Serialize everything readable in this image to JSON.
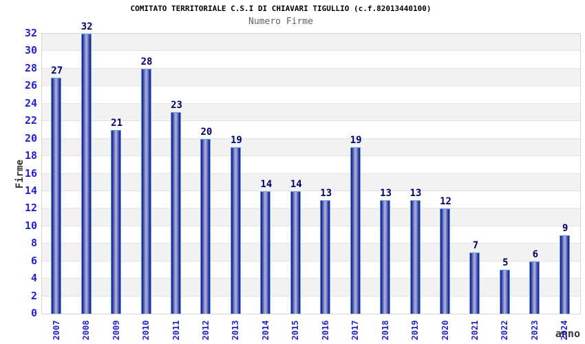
{
  "header": {
    "title": "COMITATO TERRITORIALE C.S.I DI CHIAVARI TIGULLIO (c.f.82013440100)",
    "subtitle": "Numero Firme"
  },
  "chart_data": {
    "type": "bar",
    "title": "COMITATO TERRITORIALE C.S.I DI CHIAVARI TIGULLIO (c.f.82013440100)",
    "subtitle": "Numero Firme",
    "categories": [
      "2007",
      "2008",
      "2009",
      "2010",
      "2011",
      "2012",
      "2013",
      "2014",
      "2015",
      "2016",
      "2017",
      "2018",
      "2019",
      "2020",
      "2021",
      "2022",
      "2023",
      "2024"
    ],
    "values": [
      27,
      32,
      21,
      28,
      23,
      20,
      19,
      14,
      14,
      13,
      19,
      13,
      13,
      12,
      7,
      5,
      6,
      9
    ],
    "xlabel": "anno",
    "ylabel": "Firme",
    "ylim": [
      0,
      32
    ],
    "yticks": [
      0,
      2,
      4,
      6,
      8,
      10,
      12,
      14,
      16,
      18,
      20,
      22,
      24,
      26,
      28,
      30,
      32
    ],
    "grid": "alternating horizontal bands every 2 units",
    "legend": "none"
  },
  "colors": {
    "tick_label_blue": "#2222cc",
    "value_label_navy": "#000066",
    "axis_title_gray": "#333333",
    "subtitle_gray": "#606060",
    "band_gray": "#f2f2f2",
    "band_white": "#ffffff",
    "gridline": "#e2e2e2",
    "plot_frame": "#d4d4d4",
    "bar_border": "#5aa2f2",
    "bar_edge": "#16167e",
    "bar_mid": "#3c43a8",
    "bar_center": "#a6addb"
  }
}
